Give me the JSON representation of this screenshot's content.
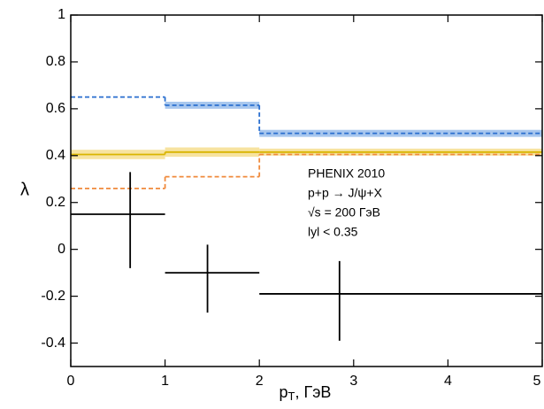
{
  "chart_data": {
    "type": "step",
    "xlim": [
      0,
      5
    ],
    "ylim": [
      -0.5,
      1
    ],
    "xticks": [
      0,
      1,
      2,
      3,
      4,
      5
    ],
    "yticks": [
      -0.4,
      -0.2,
      0,
      0.2,
      0.4,
      0.6,
      0.8,
      1
    ],
    "y_label": "λ",
    "x_label": {
      "main": "p",
      "sub": "T",
      "rest": ", ГэВ"
    },
    "annotation": [
      "PHENIX 2010",
      "p+p → J/ψ+X",
      "√s = 200 ГэВ",
      "lyl < 0.35"
    ],
    "series": [
      {
        "color": "#2a6fcf",
        "band_color": "#a8c7ee",
        "dash": true,
        "bins": [
          0,
          1,
          2,
          5
        ],
        "values": [
          0.65,
          0.615,
          0.495
        ],
        "low": [
          null,
          0.6,
          0.48
        ],
        "high": [
          null,
          0.63,
          0.51
        ]
      },
      {
        "color": "#d9b400",
        "band_color": "#f7e3a0",
        "dash": false,
        "bins": [
          0,
          1,
          2,
          5
        ],
        "values": [
          0.405,
          0.415,
          0.415
        ],
        "low": [
          0.385,
          0.395,
          0.4
        ],
        "high": [
          0.425,
          0.435,
          0.43
        ]
      },
      {
        "color": "#f08a3c",
        "dash": true,
        "bins": [
          0,
          1,
          2,
          5
        ],
        "values": [
          0.26,
          0.31,
          0.405
        ]
      }
    ],
    "points": {
      "color": "#000000",
      "x": [
        0.63,
        1.45,
        2.85
      ],
      "values": [
        0.15,
        -0.1,
        -0.19
      ],
      "x_low": [
        0,
        1,
        2
      ],
      "x_high": [
        1,
        2,
        5
      ],
      "y_low": [
        -0.08,
        -0.27,
        -0.39
      ],
      "y_high": [
        0.33,
        0.02,
        -0.05
      ]
    }
  }
}
